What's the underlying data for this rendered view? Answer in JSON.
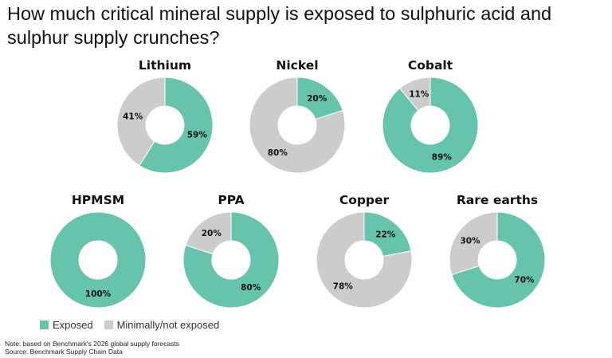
{
  "title": "How much critical mineral supply is exposed to sulphuric acid and sulphur supply crunches?",
  "colors": {
    "exposed": "#66c4ac",
    "not_exposed": "#cccccc"
  },
  "chart_data": {
    "type": "pie",
    "legend": [
      "Exposed",
      "Minimally/not exposed"
    ],
    "legend_position": "bottom-left",
    "charts": [
      {
        "name": "Lithium",
        "exposed": 59,
        "not_exposed": 41,
        "labels": [
          "59%",
          "41%"
        ]
      },
      {
        "name": "Nickel",
        "exposed": 20,
        "not_exposed": 80,
        "labels": [
          "20%",
          "80%"
        ]
      },
      {
        "name": "Cobalt",
        "exposed": 89,
        "not_exposed": 11,
        "labels": [
          "89%",
          "11%"
        ]
      },
      {
        "name": "HPMSM",
        "exposed": 100,
        "not_exposed": 0,
        "labels": [
          "100%",
          ""
        ]
      },
      {
        "name": "PPA",
        "exposed": 80,
        "not_exposed": 20,
        "labels": [
          "80%",
          "20%"
        ]
      },
      {
        "name": "Copper",
        "exposed": 22,
        "not_exposed": 78,
        "labels": [
          "22%",
          "78%"
        ]
      },
      {
        "name": "Rare earths",
        "exposed": 70,
        "not_exposed": 30,
        "labels": [
          "70%",
          "30%"
        ]
      }
    ]
  },
  "legend": {
    "exposed_label": "Exposed",
    "not_exposed_label": "Minimally/not exposed"
  },
  "footer": {
    "note": "Note: based on Benchmark's 2026 global supply forecasts",
    "source": "Source: Benchmark Supply Chain Data"
  }
}
